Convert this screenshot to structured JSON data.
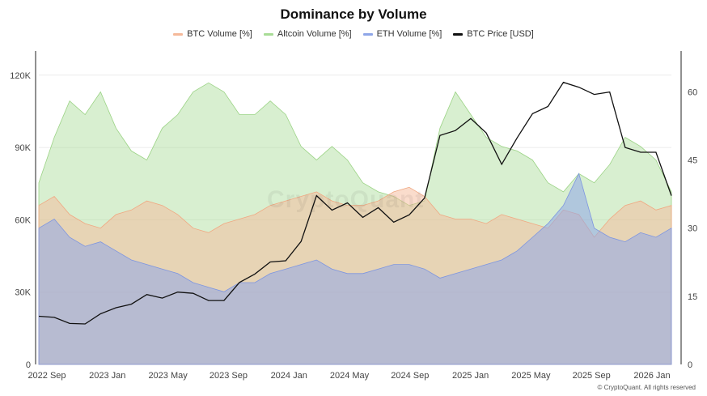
{
  "title": "Dominance by Volume",
  "legend": [
    {
      "name": "BTC Volume [%]",
      "color": "#f5b99a"
    },
    {
      "name": "Altcoin Volume [%]",
      "color": "#a8dc96"
    },
    {
      "name": "ETH Volume [%]",
      "color": "#8fa6e8"
    },
    {
      "name": "BTC Price [USD]",
      "color": "#111111"
    }
  ],
  "watermark": "CryptoQuant",
  "copyright": "© CryptoQuant. All rights reserved",
  "chart_data": {
    "type": "area",
    "x_ticks": [
      "2022 Sep",
      "2023 Jan",
      "2023 May",
      "2023 Sep",
      "2024 Jan",
      "2024 May",
      "2024 Sep",
      "2025 Jan",
      "2025 May",
      "2025 Sep",
      "2026 Jan"
    ],
    "y_left_ticks": [
      "0",
      "30K",
      "60K",
      "90K",
      "120K"
    ],
    "y_left_range": [
      0,
      130000
    ],
    "y_right_ticks": [
      "0",
      "15",
      "30",
      "45",
      "60"
    ],
    "y_right_range": [
      0,
      69
    ],
    "grid": true,
    "legend_position": "top-center",
    "x": [
      "2022-09",
      "2022-10",
      "2022-11",
      "2022-12",
      "2023-01",
      "2023-02",
      "2023-03",
      "2023-04",
      "2023-05",
      "2023-06",
      "2023-07",
      "2023-08",
      "2023-09",
      "2023-10",
      "2023-11",
      "2023-12",
      "2024-01",
      "2024-02",
      "2024-03",
      "2024-04",
      "2024-05",
      "2024-06",
      "2024-07",
      "2024-08",
      "2024-09",
      "2024-10",
      "2024-11",
      "2024-12",
      "2025-01",
      "2025-02",
      "2025-03",
      "2025-04",
      "2025-05",
      "2025-06",
      "2025-07",
      "2025-08",
      "2025-09",
      "2025-10",
      "2025-11",
      "2025-12",
      "2026-01",
      "2026-02"
    ],
    "series": [
      {
        "name": "BTC Price [USD]",
        "axis": "left",
        "values": [
          20000,
          19500,
          17000,
          16800,
          21000,
          23500,
          25000,
          29000,
          27500,
          30000,
          29500,
          26500,
          26500,
          34000,
          37500,
          42500,
          43000,
          51000,
          70000,
          64000,
          67000,
          61000,
          65000,
          59000,
          62000,
          69000,
          95000,
          97000,
          102000,
          96000,
          83000,
          94000,
          104000,
          107000,
          117000,
          115000,
          112000,
          113000,
          90000,
          88000,
          88000,
          70000
        ]
      },
      {
        "name": "BTC Volume [%]",
        "axis": "right",
        "values": [
          35,
          37,
          33,
          31,
          30,
          33,
          34,
          36,
          35,
          33,
          30,
          29,
          31,
          32,
          33,
          35,
          36,
          37,
          38,
          36,
          35,
          35,
          36,
          38,
          39,
          37,
          33,
          32,
          32,
          31,
          33,
          32,
          31,
          30,
          34,
          33,
          28,
          32,
          35,
          36,
          34,
          35
        ]
      },
      {
        "name": "Altcoin Volume [%]",
        "axis": "right",
        "values": [
          40,
          50,
          58,
          55,
          60,
          52,
          47,
          45,
          52,
          55,
          60,
          62,
          60,
          55,
          55,
          58,
          55,
          48,
          45,
          48,
          45,
          40,
          38,
          37,
          35,
          36,
          52,
          60,
          55,
          50,
          48,
          47,
          45,
          40,
          38,
          42,
          40,
          44,
          50,
          48,
          45,
          38
        ]
      },
      {
        "name": "ETH Volume [%]",
        "axis": "right",
        "values": [
          30,
          32,
          28,
          26,
          27,
          25,
          23,
          22,
          21,
          20,
          18,
          17,
          16,
          18,
          18,
          20,
          21,
          22,
          23,
          21,
          20,
          20,
          21,
          22,
          22,
          21,
          19,
          20,
          21,
          22,
          23,
          25,
          28,
          31,
          35,
          42,
          30,
          28,
          27,
          29,
          28,
          30
        ]
      }
    ]
  }
}
